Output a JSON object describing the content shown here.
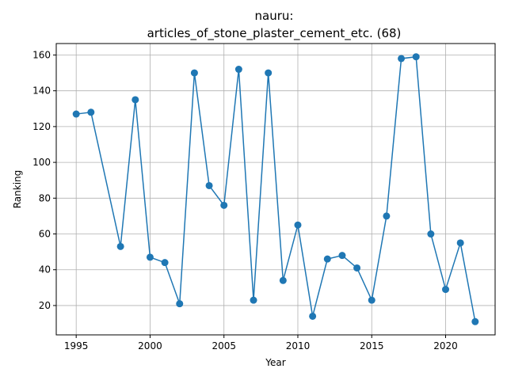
{
  "chart_data": {
    "type": "line",
    "title_line1": "nauru:",
    "title_line2": "articles_of_stone_plaster_cement_etc. (68)",
    "xlabel": "Year",
    "ylabel": "Ranking",
    "xlim": [
      1993.65,
      2023.35
    ],
    "ylim": [
      3.6,
      166.4
    ],
    "xticks": [
      1995,
      2000,
      2005,
      2010,
      2015,
      2020
    ],
    "yticks": [
      20,
      40,
      60,
      80,
      100,
      120,
      140,
      160
    ],
    "grid": true,
    "series": [
      {
        "color": "#1f77b4",
        "marker": "circle",
        "x": [
          1995,
          1996,
          1998,
          1999,
          2000,
          2001,
          2002,
          2003,
          2004,
          2005,
          2006,
          2007,
          2008,
          2009,
          2010,
          2011,
          2012,
          2013,
          2014,
          2015,
          2016,
          2017,
          2018,
          2019,
          2020,
          2021,
          2022
        ],
        "y": [
          127,
          128,
          53,
          135,
          47,
          44,
          21,
          150,
          87,
          76,
          152,
          23,
          150,
          34,
          65,
          14,
          46,
          48,
          41,
          23,
          70,
          158,
          159,
          60,
          29,
          55,
          11
        ]
      }
    ]
  }
}
